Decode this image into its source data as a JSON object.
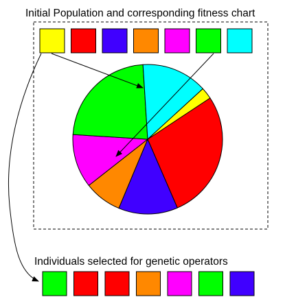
{
  "title": "Initial Population and corresponding fitness chart",
  "selected_label": "Individuals selected for genetic operators",
  "population": [
    {
      "color": "#ffff00"
    },
    {
      "color": "#ff0000"
    },
    {
      "color": "#4000ff"
    },
    {
      "color": "#ff8800"
    },
    {
      "color": "#ff00ff"
    },
    {
      "color": "#00ff00"
    },
    {
      "color": "#00ffff"
    }
  ],
  "fitness_pie": [
    {
      "color": "#ff0000",
      "share": 0.278
    },
    {
      "color": "#4000ff",
      "share": 0.128
    },
    {
      "color": "#ff8800",
      "share": 0.081
    },
    {
      "color": "#ff00ff",
      "share": 0.116
    },
    {
      "color": "#00ff00",
      "share": 0.23
    },
    {
      "color": "#00ffff",
      "share": 0.142
    },
    {
      "color": "#ffff00",
      "share": 0.025
    }
  ],
  "selected": [
    {
      "color": "#00ff00"
    },
    {
      "color": "#ff0000"
    },
    {
      "color": "#ff0000"
    },
    {
      "color": "#ff8800"
    },
    {
      "color": "#ff00ff"
    },
    {
      "color": "#00ff00"
    },
    {
      "color": "#4000ff"
    }
  ]
}
